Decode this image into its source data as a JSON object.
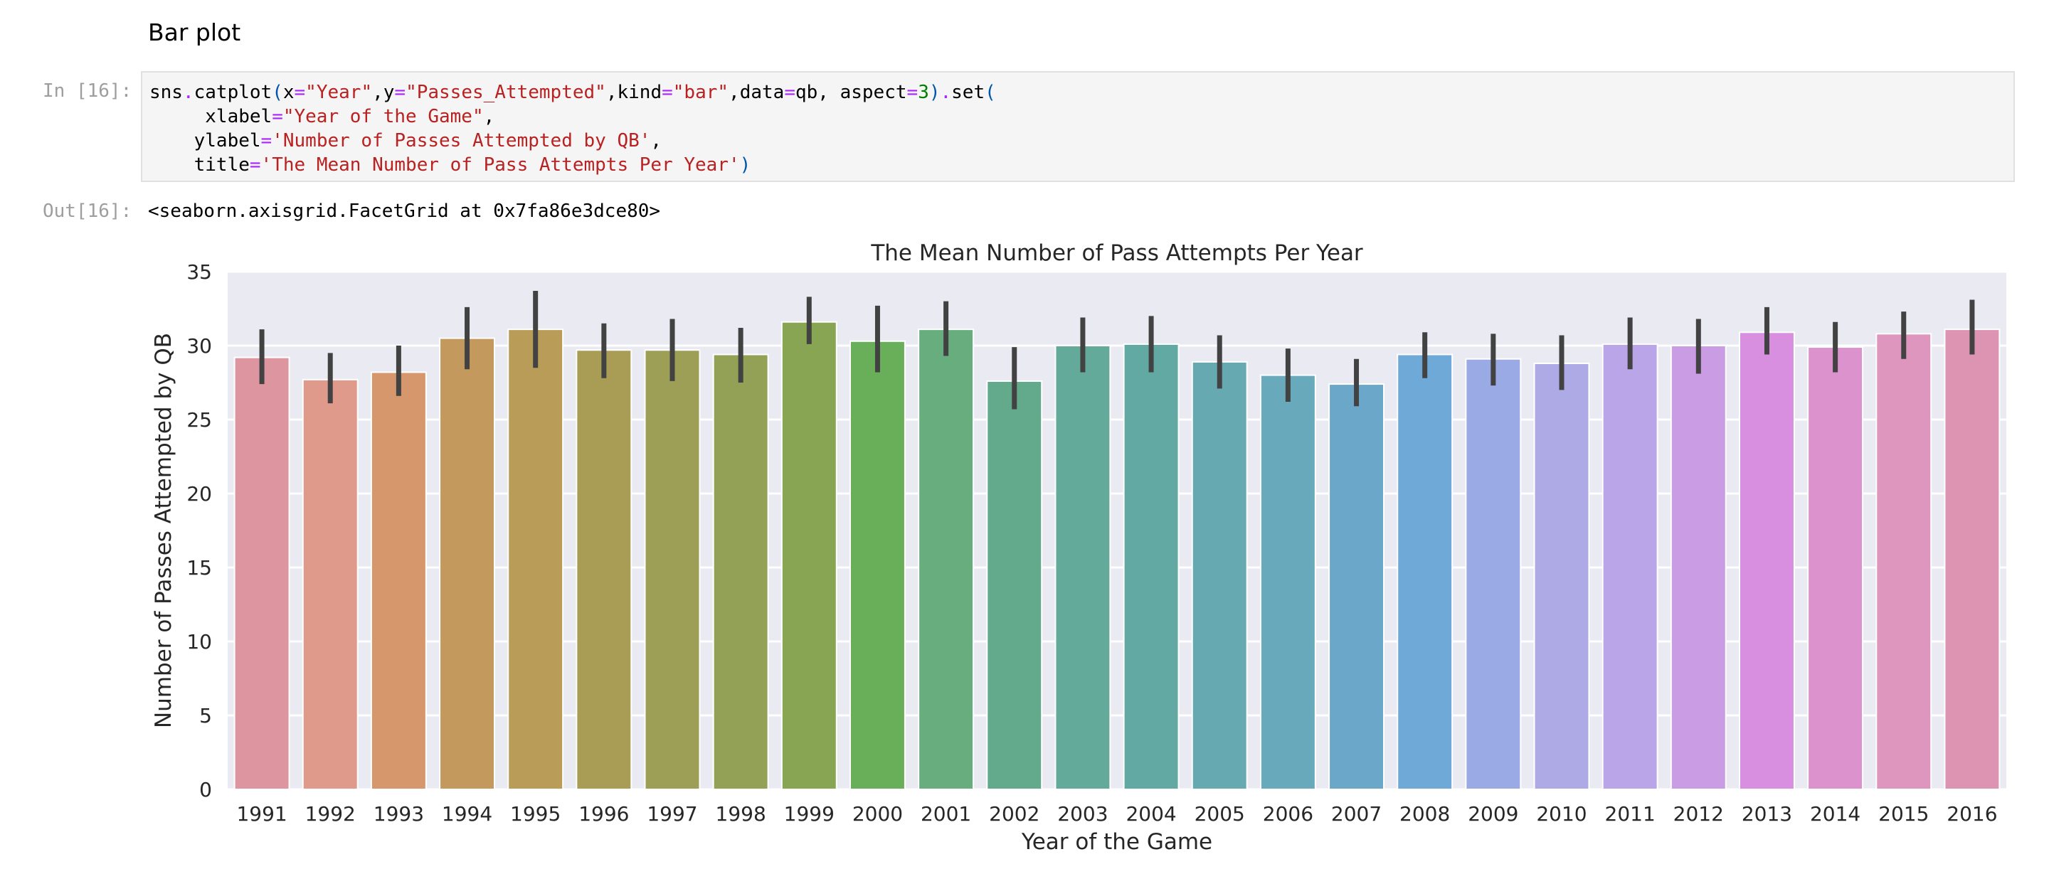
{
  "notebook": {
    "heading": "Bar plot",
    "in_prompt": "In [16]:",
    "out_prompt": "Out[16]:",
    "code_lines": [
      "sns.catplot(x=\"Year\",y=\"Passes_Attempted\",kind=\"bar\",data=qb, aspect=3).set(",
      "     xlabel=\"Year of the Game\",",
      "    ylabel='Number of Passes Attempted by QB',",
      "    title='The Mean Number of Pass Attempts Per Year')"
    ],
    "output_text": "<seaborn.axisgrid.FacetGrid at 0x7fa86e3dce80>"
  },
  "chart_data": {
    "type": "bar",
    "title": "The Mean Number of Pass Attempts Per Year",
    "xlabel": "Year of the Game",
    "ylabel": "Number of Passes Attempted by QB",
    "ylim": [
      0,
      35
    ],
    "yticks": [
      "0",
      "5",
      "10",
      "15",
      "20",
      "25",
      "30",
      "35"
    ],
    "grid": true,
    "background": "#eaeaf2",
    "categories": [
      "1991",
      "1992",
      "1993",
      "1994",
      "1995",
      "1996",
      "1997",
      "1998",
      "1999",
      "2000",
      "2001",
      "2002",
      "2003",
      "2004",
      "2005",
      "2006",
      "2007",
      "2008",
      "2009",
      "2010",
      "2011",
      "2012",
      "2013",
      "2014",
      "2015",
      "2016"
    ],
    "values": [
      29.2,
      27.7,
      28.2,
      30.5,
      31.1,
      29.7,
      29.7,
      29.4,
      31.6,
      30.3,
      31.1,
      27.6,
      30.0,
      30.1,
      28.9,
      28.0,
      27.4,
      29.4,
      29.1,
      28.8,
      30.1,
      30.0,
      30.9,
      29.9,
      30.8,
      31.1
    ],
    "ci_low": [
      27.4,
      26.1,
      26.6,
      28.4,
      28.5,
      27.8,
      27.6,
      27.5,
      30.1,
      28.2,
      29.3,
      25.7,
      28.2,
      28.2,
      27.1,
      26.2,
      25.9,
      27.8,
      27.3,
      27.0,
      28.4,
      28.1,
      29.4,
      28.2,
      29.1,
      29.4
    ],
    "ci_high": [
      31.1,
      29.5,
      30.0,
      32.6,
      33.7,
      31.5,
      31.8,
      31.2,
      33.3,
      32.7,
      33.0,
      29.9,
      31.9,
      32.0,
      30.7,
      29.8,
      29.1,
      30.9,
      30.8,
      30.7,
      31.9,
      31.8,
      32.6,
      31.6,
      32.3,
      33.1
    ],
    "colors": [
      "#dd96a0",
      "#df9a8c",
      "#d5976b",
      "#c3995d",
      "#b89c58",
      "#a99d56",
      "#9e9f57",
      "#93a157",
      "#88a554",
      "#69ae58",
      "#68ad7d",
      "#63aa8c",
      "#64aa9a",
      "#63a9a3",
      "#67a9b1",
      "#69a9bc",
      "#6aa7c9",
      "#6fa9d8",
      "#9aaae4",
      "#adaae6",
      "#b9a5e7",
      "#c99ce4",
      "#d88fe0",
      "#dc92cc",
      "#de95be",
      "#dc94b2"
    ],
    "error_color": "#424242"
  }
}
